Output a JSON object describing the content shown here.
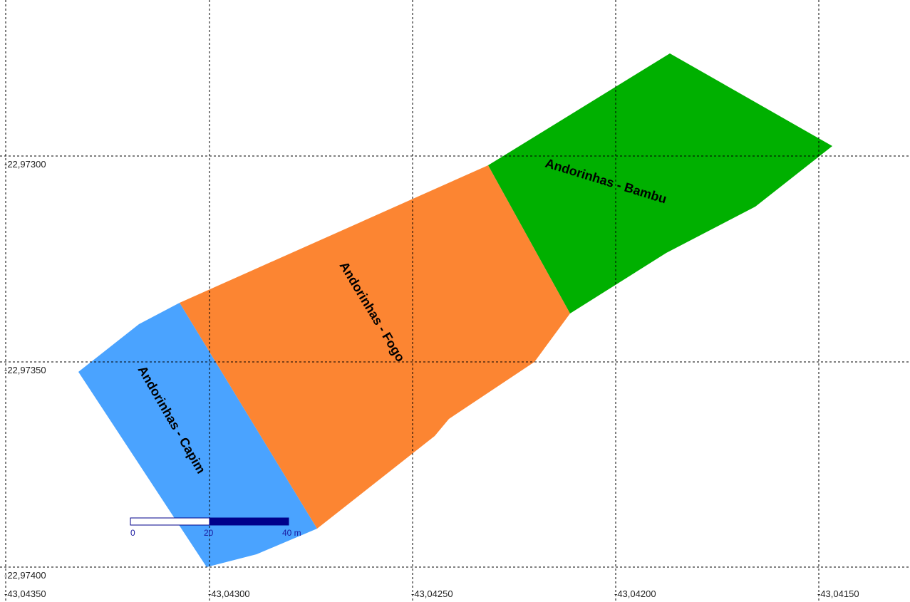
{
  "map": {
    "x_axis": {
      "labels": [
        "-43,04350",
        "-43,04300",
        "-43,04250",
        "-43,04200",
        "-43,04150"
      ]
    },
    "y_axis": {
      "labels": [
        "-22,97300",
        "-22,97350",
        "-22,97400"
      ]
    },
    "parcels": [
      {
        "name": "Andorinhas - Capim",
        "color": "#4aa3ff"
      },
      {
        "name": "Andorinhas - Fogo",
        "color": "#fc8532"
      },
      {
        "name": "Andorinhas - Bambu",
        "color": "#00b000"
      }
    ],
    "scale_bar": {
      "labels": [
        "0",
        "20",
        "40 m"
      ],
      "fill_color": "#00008b"
    }
  }
}
